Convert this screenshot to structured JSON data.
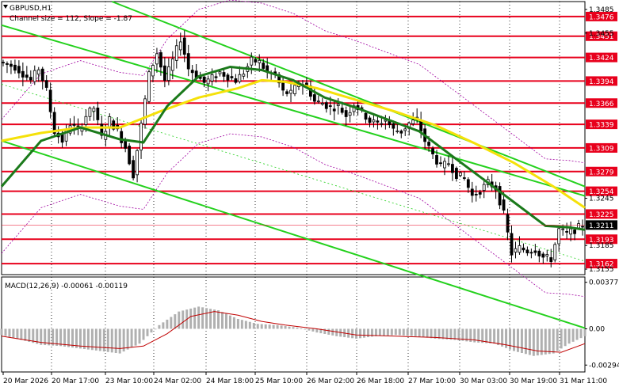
{
  "header": {
    "symbol": "GBPUSD,H1",
    "channel_info": "Channel size = 112, Slope = -1.87"
  },
  "colors": {
    "candle": "#000000",
    "grid": "#000000",
    "level_line": "#e8001c",
    "level_label_bg": "#e8001c",
    "current_price_bg": "#000000",
    "ma_fast": "#1b7a1b",
    "ma_slow": "#f5e10a",
    "channel": "#24d11d",
    "envelope": "#a000a0",
    "macd_hist": "#b0b0b0",
    "macd_signal": "#c00000"
  },
  "chart_data": [
    {
      "type": "candlestick",
      "title": "GBPUSD,H1",
      "subtitle": "Channel size = 112, Slope = -1.87",
      "x_tick_labels": [
        "20 Mar 2026",
        "20 Mar 17:00",
        "23 Mar 10:00",
        "24 Mar 02:00",
        "24 Mar 18:00",
        "25 Mar 10:00",
        "26 Mar 02:00",
        "26 Mar 18:00",
        "27 Mar 10:00",
        "30 Mar 03:00",
        "30 Mar 19:00",
        "31 Mar 11:00"
      ],
      "y_tick_labels": [
        "1.3485",
        "1.3455",
        "1.3245",
        "1.3185",
        "1.3155"
      ],
      "ylim": [
        1.3148,
        1.3495
      ],
      "price_levels": [
        1.3476,
        1.3451,
        1.3424,
        1.3394,
        1.3366,
        1.3339,
        1.3309,
        1.3279,
        1.3254,
        1.3225,
        1.3193,
        1.3162
      ],
      "current_price": 1.3211,
      "grid": true,
      "close_path": [
        [
          0,
          1.3418
        ],
        [
          4,
          1.3412
        ],
        [
          8,
          1.3395
        ],
        [
          10,
          1.341
        ],
        [
          12,
          1.3382
        ],
        [
          14,
          1.333
        ],
        [
          16,
          1.3318
        ],
        [
          18,
          1.334
        ],
        [
          20,
          1.333
        ],
        [
          22,
          1.335
        ],
        [
          24,
          1.336
        ],
        [
          26,
          1.3322
        ],
        [
          28,
          1.3345
        ],
        [
          30,
          1.333
        ],
        [
          32,
          1.331
        ],
        [
          34,
          1.3275
        ],
        [
          36,
          1.3338
        ],
        [
          38,
          1.3402
        ],
        [
          40,
          1.343
        ],
        [
          42,
          1.3395
        ],
        [
          44,
          1.342
        ],
        [
          46,
          1.3448
        ],
        [
          48,
          1.341
        ],
        [
          50,
          1.3402
        ],
        [
          52,
          1.3392
        ],
        [
          54,
          1.3398
        ],
        [
          56,
          1.3405
        ],
        [
          58,
          1.34
        ],
        [
          60,
          1.3395
        ],
        [
          62,
          1.3405
        ],
        [
          64,
          1.342
        ],
        [
          66,
          1.3418
        ],
        [
          68,
          1.3405
        ],
        [
          70,
          1.3402
        ],
        [
          72,
          1.338
        ],
        [
          74,
          1.3378
        ],
        [
          76,
          1.3392
        ],
        [
          78,
          1.3388
        ],
        [
          80,
          1.3368
        ],
        [
          82,
          1.3366
        ],
        [
          84,
          1.336
        ],
        [
          86,
          1.3362
        ],
        [
          88,
          1.335
        ],
        [
          90,
          1.3365
        ],
        [
          92,
          1.3355
        ],
        [
          94,
          1.3343
        ],
        [
          96,
          1.334
        ],
        [
          98,
          1.3345
        ],
        [
          100,
          1.3332
        ],
        [
          102,
          1.333
        ],
        [
          104,
          1.334
        ],
        [
          106,
          1.3345
        ],
        [
          108,
          1.3318
        ],
        [
          110,
          1.33
        ],
        [
          112,
          1.3285
        ],
        [
          114,
          1.329
        ],
        [
          116,
          1.3275
        ],
        [
          118,
          1.327
        ],
        [
          120,
          1.3248
        ],
        [
          122,
          1.3255
        ],
        [
          124,
          1.3265
        ],
        [
          126,
          1.3258
        ],
        [
          128,
          1.3225
        ],
        [
          130,
          1.3175
        ],
        [
          132,
          1.3182
        ],
        [
          134,
          1.3178
        ],
        [
          136,
          1.318
        ],
        [
          138,
          1.317
        ],
        [
          140,
          1.3168
        ],
        [
          142,
          1.3205
        ],
        [
          144,
          1.32
        ],
        [
          146,
          1.3205
        ],
        [
          148,
          1.3211
        ]
      ],
      "series": [
        {
          "values": [
            [
              0,
              1.326
            ],
            [
              10,
              1.3318
            ],
            [
              20,
              1.3335
            ],
            [
              30,
              1.332
            ],
            [
              36,
              1.3316
            ],
            [
              42,
              1.3362
            ],
            [
              50,
              1.34
            ],
            [
              58,
              1.3412
            ],
            [
              66,
              1.3408
            ],
            [
              74,
              1.3395
            ],
            [
              82,
              1.3373
            ],
            [
              90,
              1.336
            ],
            [
              98,
              1.3345
            ],
            [
              106,
              1.333
            ],
            [
              114,
              1.33
            ],
            [
              122,
              1.327
            ],
            [
              130,
              1.324
            ],
            [
              138,
              1.321
            ],
            [
              144,
              1.3208
            ],
            [
              148,
              1.3205
            ]
          ]
        },
        {
          "values": [
            [
              0,
              1.3318
            ],
            [
              10,
              1.3328
            ],
            [
              20,
              1.3335
            ],
            [
              30,
              1.3335
            ],
            [
              40,
              1.3355
            ],
            [
              50,
              1.3373
            ],
            [
              60,
              1.3385
            ],
            [
              66,
              1.3395
            ],
            [
              72,
              1.3393
            ],
            [
              80,
              1.3385
            ],
            [
              90,
              1.337
            ],
            [
              100,
              1.3355
            ],
            [
              110,
              1.3338
            ],
            [
              120,
              1.3315
            ],
            [
              130,
              1.329
            ],
            [
              140,
              1.326
            ],
            [
              148,
              1.3233
            ]
          ]
        }
      ]
    },
    {
      "type": "bar",
      "title": "MACD(12,26,9) -0.00061 -0.00119",
      "y_tick_labels": [
        "0.00377",
        "0.00",
        "-0.00294"
      ],
      "ylim": [
        -0.0035,
        0.0042
      ],
      "histogram": [
        [
          0,
          -0.0005
        ],
        [
          5,
          -0.0009
        ],
        [
          10,
          -0.0013
        ],
        [
          15,
          -0.0014
        ],
        [
          20,
          -0.0016
        ],
        [
          25,
          -0.0018
        ],
        [
          30,
          -0.002
        ],
        [
          35,
          -0.0012
        ],
        [
          40,
          0.0003
        ],
        [
          45,
          0.0014
        ],
        [
          50,
          0.0018
        ],
        [
          55,
          0.0015
        ],
        [
          60,
          0.0008
        ],
        [
          65,
          0.0004
        ],
        [
          70,
          0.0003
        ],
        [
          75,
          0.0001
        ],
        [
          80,
          -0.0003
        ],
        [
          85,
          -0.0006
        ],
        [
          90,
          -0.0008
        ],
        [
          95,
          -0.0006
        ],
        [
          100,
          -0.0005
        ],
        [
          105,
          -0.0006
        ],
        [
          110,
          -0.0008
        ],
        [
          115,
          -0.0009
        ],
        [
          120,
          -0.0011
        ],
        [
          125,
          -0.0012
        ],
        [
          130,
          -0.0018
        ],
        [
          135,
          -0.0022
        ],
        [
          140,
          -0.002
        ],
        [
          144,
          -0.0012
        ],
        [
          148,
          -0.0006
        ]
      ],
      "signal": [
        [
          0,
          -0.0006
        ],
        [
          10,
          -0.0011
        ],
        [
          20,
          -0.0014
        ],
        [
          30,
          -0.0016
        ],
        [
          36,
          -0.0014
        ],
        [
          42,
          -0.0004
        ],
        [
          48,
          0.001
        ],
        [
          54,
          0.0014
        ],
        [
          60,
          0.0011
        ],
        [
          66,
          0.0006
        ],
        [
          72,
          0.0003
        ],
        [
          80,
          0.0
        ],
        [
          90,
          -0.0005
        ],
        [
          100,
          -0.0006
        ],
        [
          110,
          -0.0007
        ],
        [
          120,
          -0.0009
        ],
        [
          128,
          -0.0013
        ],
        [
          136,
          -0.0018
        ],
        [
          142,
          -0.0019
        ],
        [
          148,
          -0.0012
        ]
      ]
    }
  ]
}
